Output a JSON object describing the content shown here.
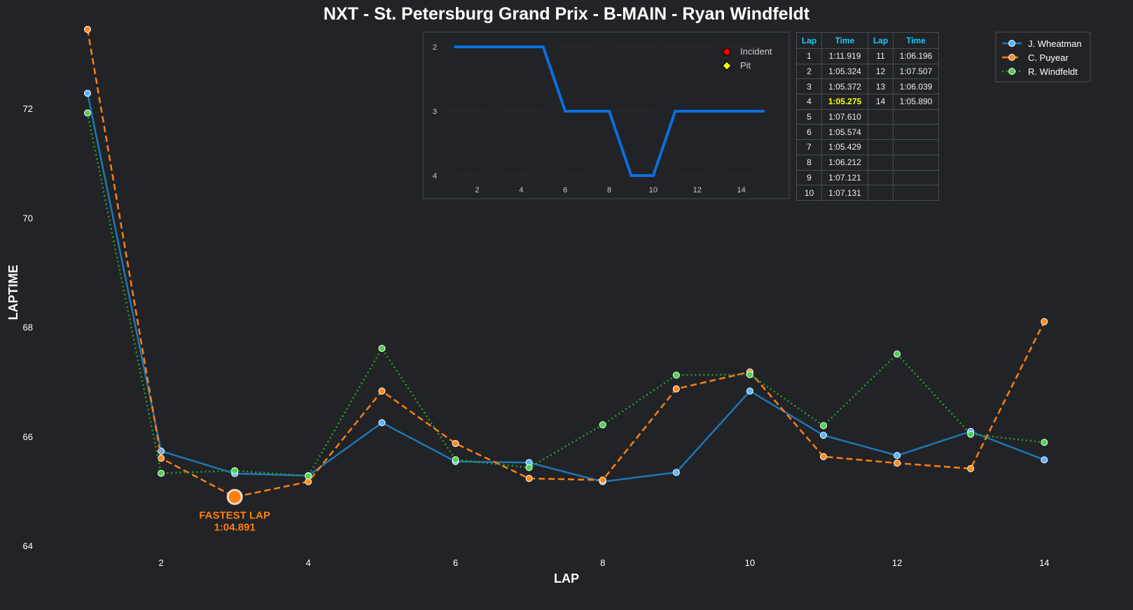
{
  "chart_data": [
    {
      "type": "line",
      "title": "NXT - St. Petersburg Grand Prix - B-MAIN - Ryan Windfeldt",
      "xlabel": "LAP",
      "ylabel": "LAPTIME",
      "xlim": [
        0.5,
        14.5
      ],
      "ylim": [
        64,
        73.4
      ],
      "xticks": [
        2,
        4,
        6,
        8,
        10,
        12,
        14
      ],
      "yticks": [
        64,
        66,
        68,
        70,
        72
      ],
      "x": [
        1,
        2,
        3,
        4,
        5,
        6,
        7,
        8,
        9,
        10,
        11,
        12,
        13,
        14
      ],
      "legend_position": "top-right",
      "series": [
        {
          "name": "J. Wheatman",
          "color": "#1f77b4",
          "marker": "#5ab4ff",
          "dash": "",
          "values": [
            72.28,
            65.73,
            65.32,
            65.28,
            66.25,
            65.54,
            65.52,
            65.17,
            65.34,
            66.83,
            66.02,
            65.65,
            66.09,
            65.57
          ]
        },
        {
          "name": "C. Puyear",
          "color": "#ff7f0e",
          "marker": "#ff8c1a",
          "dash": "9,5",
          "values": [
            73.45,
            65.6,
            64.891,
            65.17,
            66.83,
            65.87,
            65.23,
            65.2,
            66.87,
            67.18,
            65.63,
            65.51,
            65.41,
            68.1
          ]
        },
        {
          "name": "R. Windfeldt",
          "color": "#2ca02c",
          "marker": "#4cd44c",
          "dash": "2,4",
          "values": [
            71.919,
            65.324,
            65.372,
            65.275,
            67.61,
            65.574,
            65.429,
            66.212,
            67.121,
            67.131,
            66.196,
            67.507,
            66.039,
            65.89
          ]
        }
      ],
      "annotation": {
        "lap": 3,
        "value": 64.891,
        "label1": "FASTEST LAP",
        "label2": "1:04.891"
      }
    },
    {
      "type": "line",
      "title": "position",
      "x": [
        1,
        2,
        3,
        4,
        5,
        6,
        7,
        8,
        9,
        10,
        11,
        12,
        13,
        14,
        15
      ],
      "values": [
        2,
        2,
        2,
        2,
        2,
        3,
        3,
        3,
        4,
        4,
        3,
        3,
        3,
        3,
        3
      ],
      "ylim": [
        4,
        2
      ],
      "yticks": [
        2,
        3,
        4
      ],
      "xticks": [
        2,
        4,
        6,
        8,
        10,
        12,
        14
      ],
      "color": "#0a6fe0",
      "legend": [
        {
          "label": "Incident",
          "color": "#ff0000"
        },
        {
          "label": "Pit",
          "color": "#ffff00"
        }
      ]
    }
  ],
  "table": {
    "headers": [
      "Lap",
      "Time",
      "Lap",
      "Time"
    ],
    "rows": [
      [
        "1",
        "1:11.919",
        "11",
        "1:06.196"
      ],
      [
        "2",
        "1:05.324",
        "12",
        "1:07.507"
      ],
      [
        "3",
        "1:05.372",
        "13",
        "1:06.039"
      ],
      [
        "4",
        "1:05.275",
        "14",
        "1:05.890"
      ],
      [
        "5",
        "1:07.610",
        "",
        ""
      ],
      [
        "6",
        "1:05.574",
        "",
        ""
      ],
      [
        "7",
        "1:05.429",
        "",
        ""
      ],
      [
        "8",
        "1:06.212",
        "",
        ""
      ],
      [
        "9",
        "1:07.121",
        "",
        ""
      ],
      [
        "10",
        "1:07.131",
        "",
        ""
      ]
    ],
    "fastest_row": 3
  }
}
